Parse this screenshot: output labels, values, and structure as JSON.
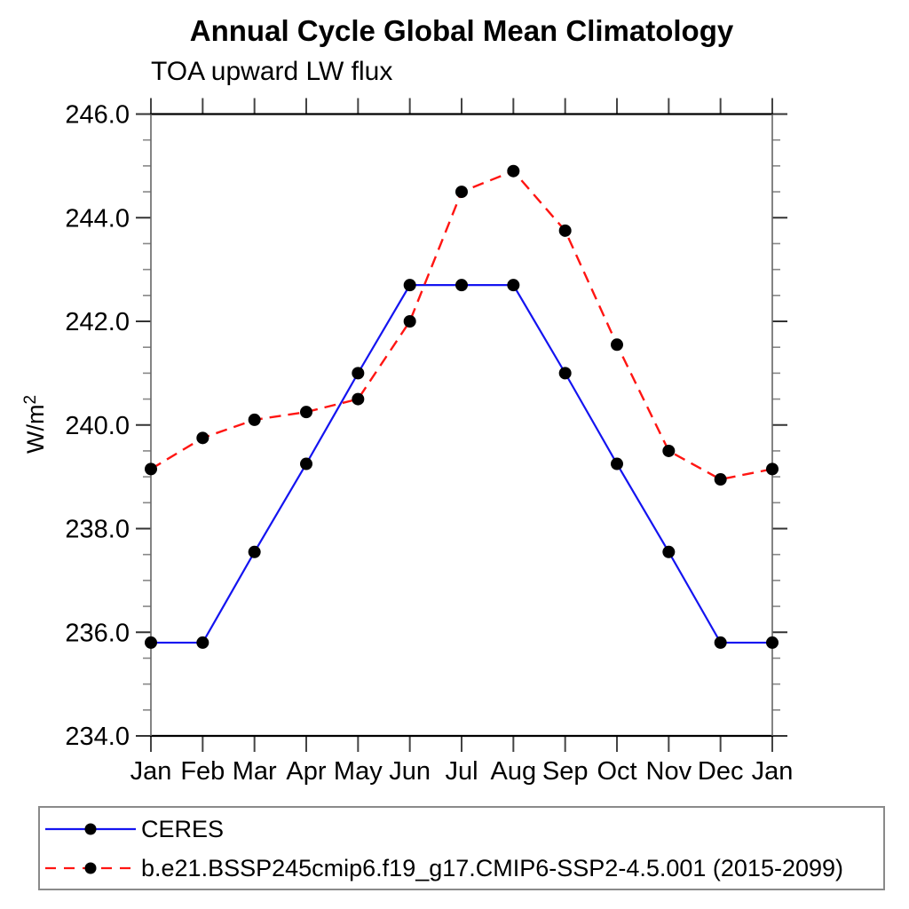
{
  "labels": {
    "ylabel_base": "W/m",
    "ylabel_sup": "2"
  },
  "chart_data": {
    "type": "line",
    "title": "Annual Cycle Global Mean Climatology",
    "subtitle": "TOA upward LW flux",
    "ylabel": "W/m²",
    "xlabel": "",
    "categories": [
      "Jan",
      "Feb",
      "Mar",
      "Apr",
      "May",
      "Jun",
      "Jul",
      "Aug",
      "Sep",
      "Oct",
      "Nov",
      "Dec",
      "Jan"
    ],
    "ylim": [
      234.0,
      246.0
    ],
    "ytick_interval": 2.0,
    "yminor_interval": 0.5,
    "yticks": [
      246.0,
      244.0,
      242.0,
      240.0,
      238.0,
      236.0,
      234.0
    ],
    "ytick_labels": [
      "246.0",
      "244.0",
      "242.0",
      "240.0",
      "238.0",
      "236.0",
      "234.0"
    ],
    "grid": false,
    "legend_position": "bottom-left-box",
    "series": [
      {
        "name": "CERES",
        "color": "#1414f0",
        "style": "solid",
        "marker": "circle",
        "marker_color": "#000000",
        "values": [
          235.8,
          235.8,
          237.55,
          239.25,
          241.0,
          242.7,
          242.7,
          242.7,
          241.0,
          239.25,
          237.55,
          235.8,
          235.8
        ]
      },
      {
        "name": "b.e21.BSSP245cmip6.f19_g17.CMIP6-SSP2-4.5.001 (2015-2099)",
        "color": "#ff1512",
        "style": "dashed",
        "marker": "circle",
        "marker_color": "#000000",
        "values": [
          239.15,
          239.75,
          240.1,
          240.25,
          240.5,
          242.0,
          244.5,
          244.9,
          243.75,
          241.55,
          239.5,
          238.95,
          239.15
        ]
      }
    ]
  }
}
